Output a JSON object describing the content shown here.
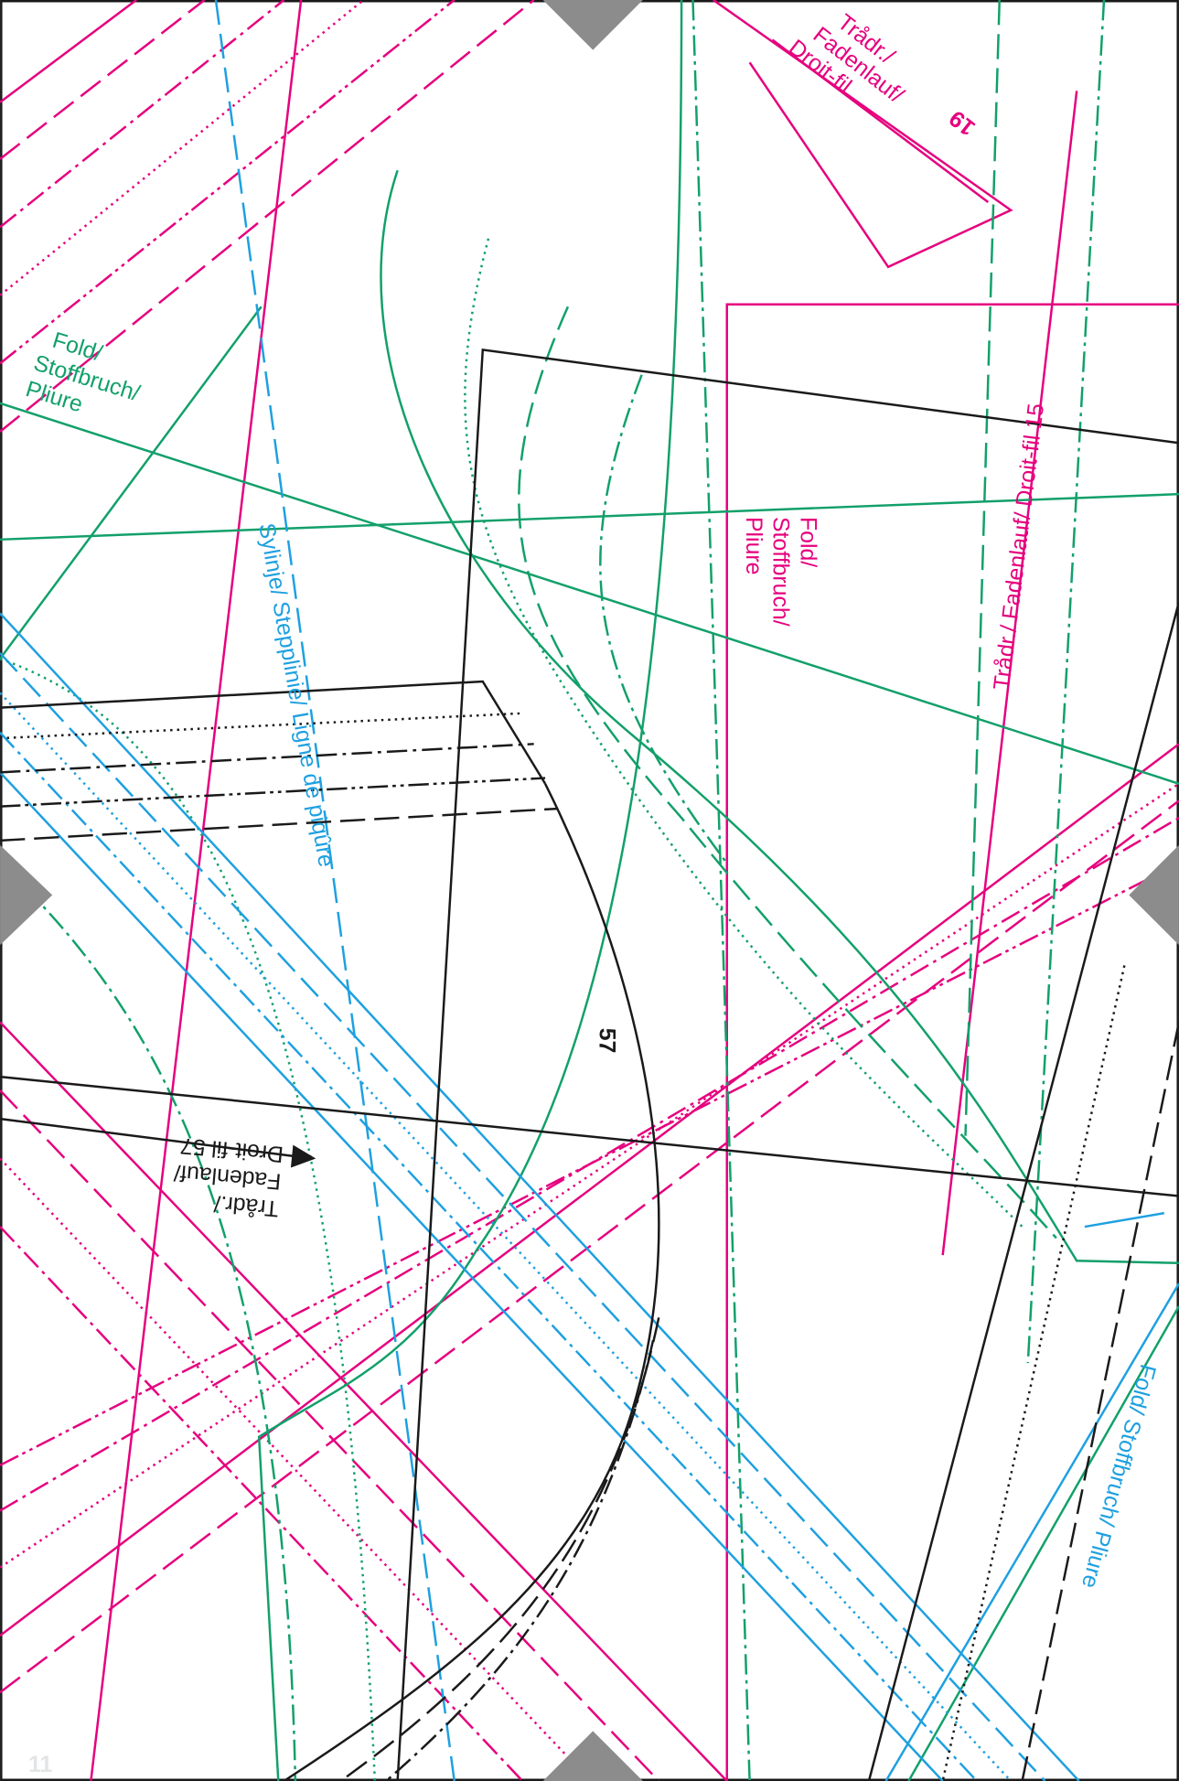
{
  "sheet_number": "11",
  "labels": {
    "grain_19": {
      "lines": [
        "Trådr./",
        "Fadenlauf/",
        "Droit-fil"
      ],
      "number": "19"
    },
    "fold_green": {
      "lines": [
        "Fold/",
        "Stoffbruch/",
        "Pliure"
      ]
    },
    "fold_magenta": {
      "lines": [
        "Fold/",
        "Stoffbruch/",
        "Pliure"
      ]
    },
    "grain_15": {
      "text": "Trådr./ Fadenlauf/ Droit-fil 15"
    },
    "stitch_line": {
      "text": "Sylinje/ Stepplinie/ Ligne de piqûre"
    },
    "piece_57": {
      "text": "57"
    },
    "grain_57": {
      "lines": [
        "Trådr./",
        "Fadenlauf/",
        "Droit-fil 57"
      ]
    },
    "fold_blue": {
      "text": "Fold/ Stoffbruch/ Pliure"
    }
  }
}
